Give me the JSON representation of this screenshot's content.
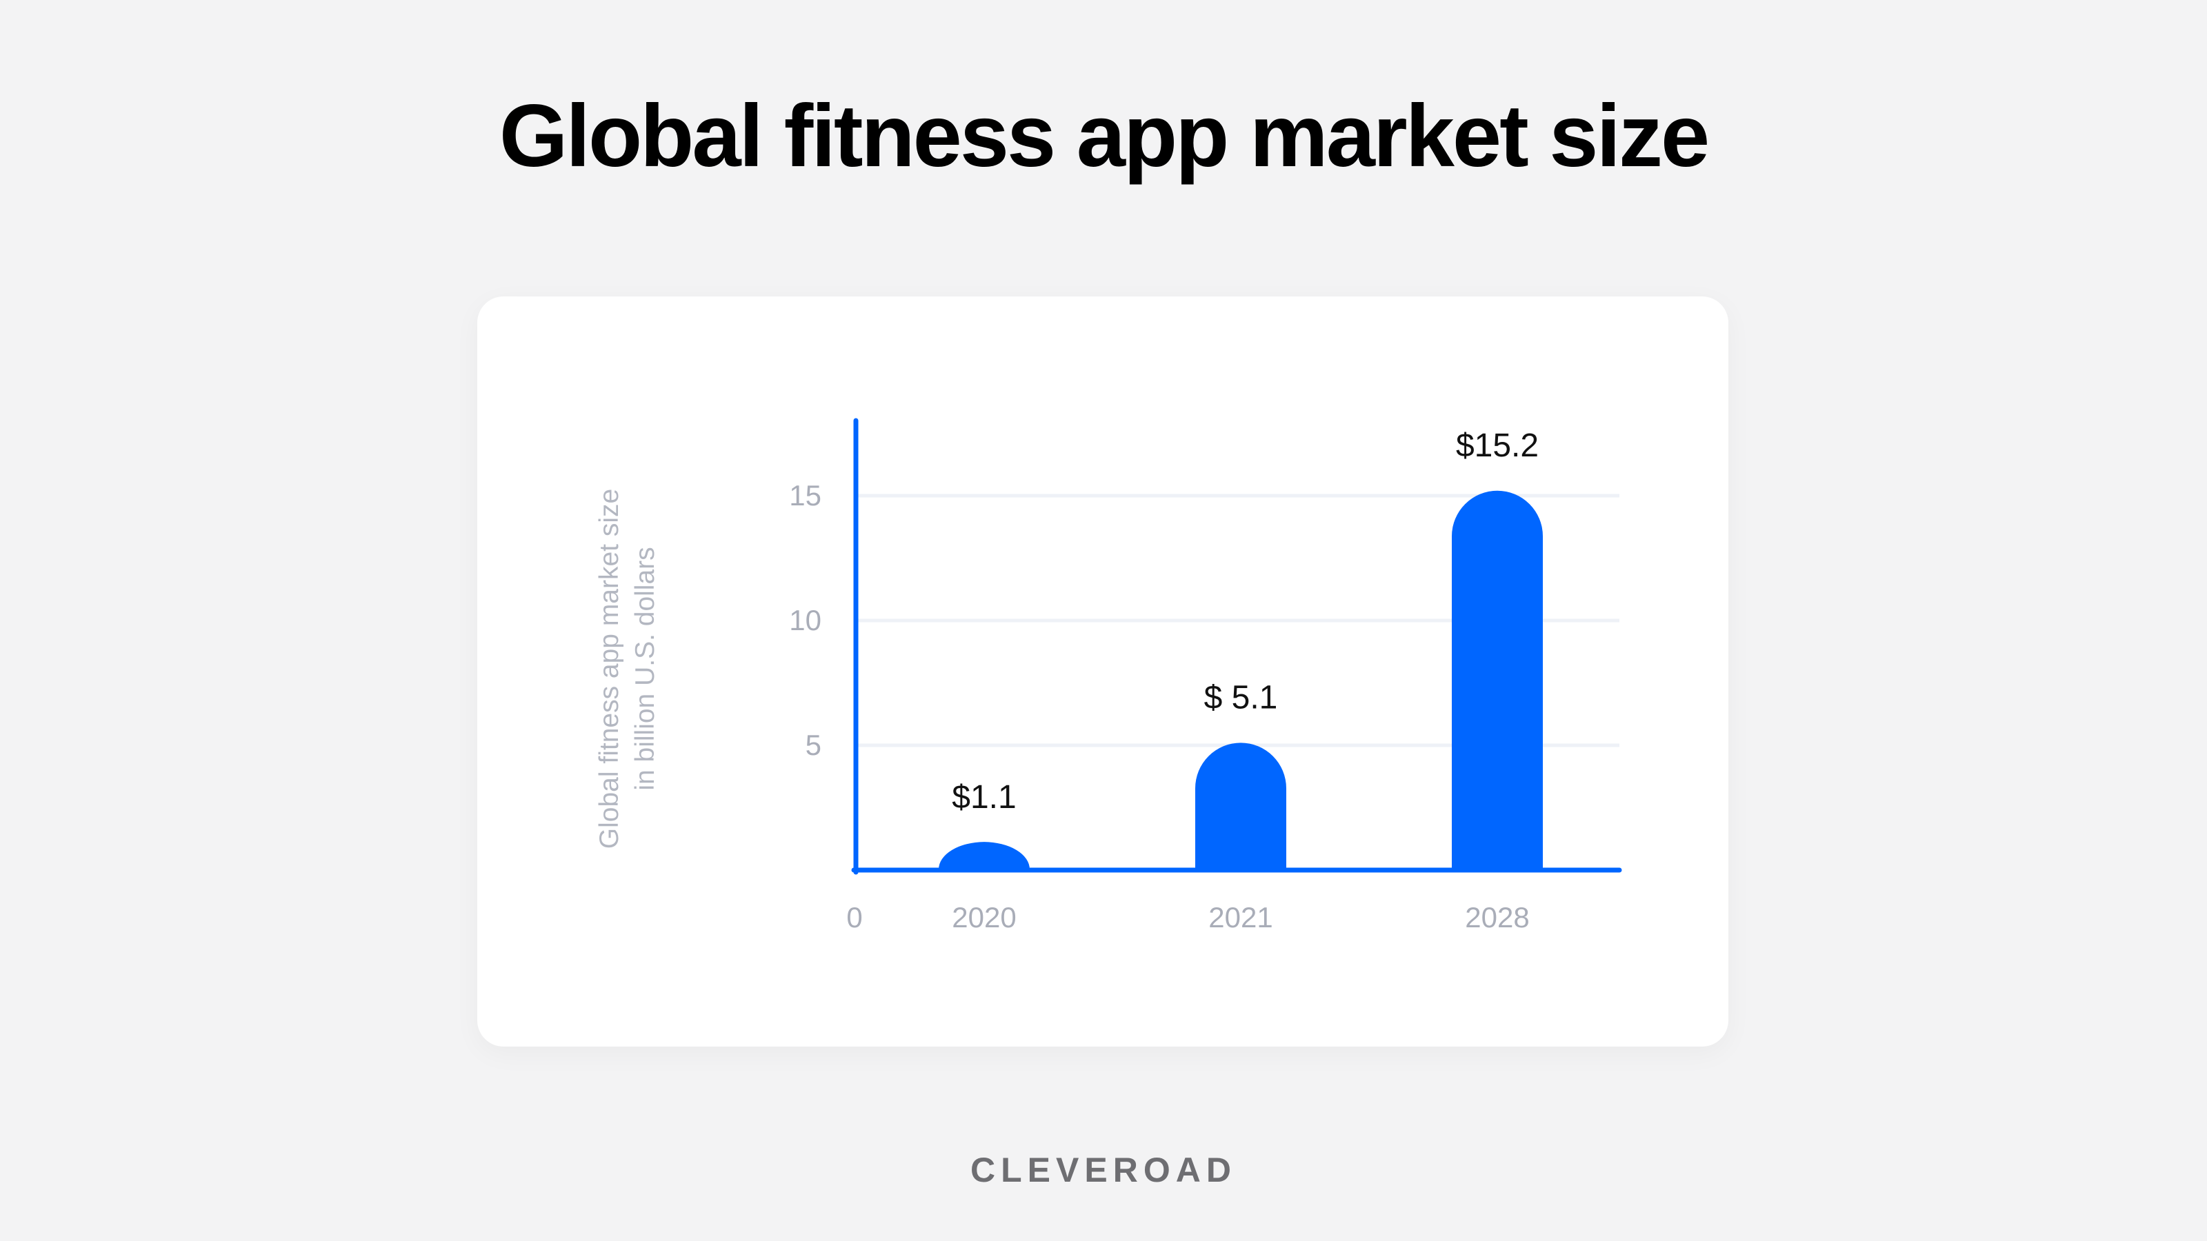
{
  "title": "Global fitness app market size",
  "brand": "CLEVEROAD",
  "colors": {
    "background": "#f3f3f4",
    "card": "#ffffff",
    "bar": "#0066ff",
    "axis": "#0066ff",
    "grid": "#eef1f7",
    "tick_text": "#a9adb8",
    "value_text": "#111111"
  },
  "chart_data": {
    "type": "bar",
    "categories": [
      "2020",
      "2021",
      "2028"
    ],
    "values": [
      1.1,
      5.1,
      15.2
    ],
    "value_labels": [
      "$1.1",
      "$ 5.1",
      "$15.2"
    ],
    "title": "Global fitness app market size",
    "xlabel": "",
    "ylabel_lines": [
      "Global fitness app market size",
      "in billion U.S. dollars"
    ],
    "yticks": [
      5,
      10,
      15
    ],
    "origin_label": "0",
    "ylim": [
      0,
      17
    ],
    "grid": true
  }
}
